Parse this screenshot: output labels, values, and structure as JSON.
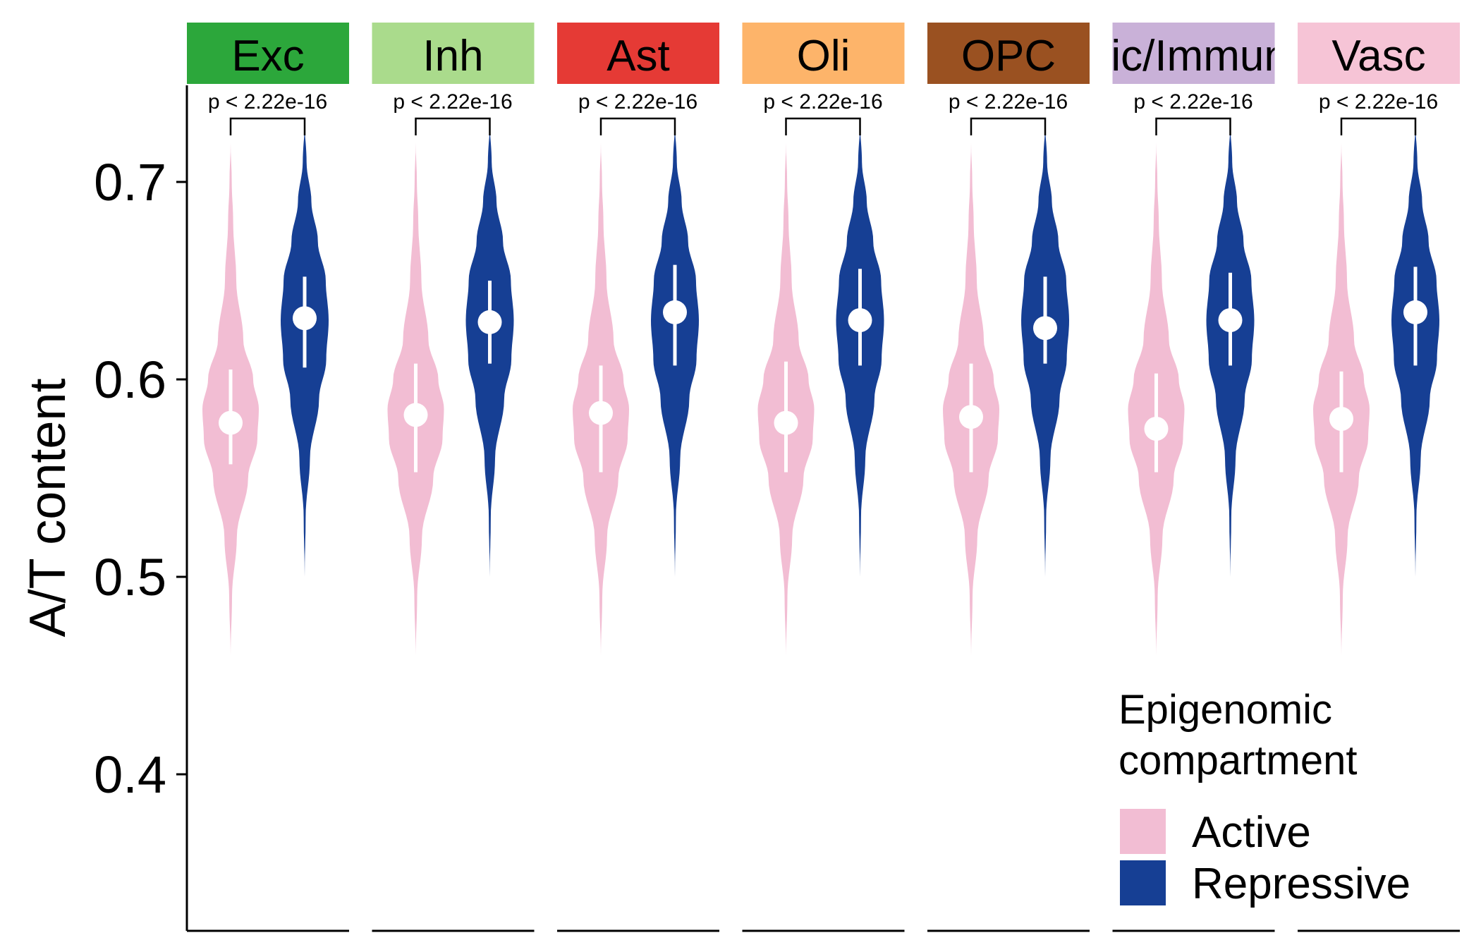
{
  "chart_data": {
    "type": "violin",
    "ylabel": "A/T content",
    "xlabel": "",
    "ylim": [
      0.32,
      0.75
    ],
    "yticks": [
      "0.4",
      "0.5",
      "0.6",
      "0.7"
    ],
    "grid": false,
    "legend": {
      "title_line1": "Epigenomic",
      "title_line2": "compartment",
      "placement": "bottom-right",
      "entries": [
        {
          "label": "Active",
          "color": "#f2bdd3"
        },
        {
          "label": "Repressive",
          "color": "#163f94"
        }
      ]
    },
    "groups": [
      "Active",
      "Repressive"
    ],
    "density_profile": {
      "Active": [
        [
          0.46,
          0
        ],
        [
          0.49,
          0.05
        ],
        [
          0.52,
          0.22
        ],
        [
          0.55,
          0.62
        ],
        [
          0.57,
          0.95
        ],
        [
          0.585,
          1
        ],
        [
          0.6,
          0.8
        ],
        [
          0.62,
          0.45
        ],
        [
          0.65,
          0.2
        ],
        [
          0.68,
          0.09
        ],
        [
          0.7,
          0.04
        ],
        [
          0.72,
          0
        ]
      ],
      "Repressive": [
        [
          0.5,
          0
        ],
        [
          0.53,
          0.04
        ],
        [
          0.56,
          0.22
        ],
        [
          0.59,
          0.6
        ],
        [
          0.61,
          0.9
        ],
        [
          0.63,
          1
        ],
        [
          0.65,
          0.88
        ],
        [
          0.67,
          0.55
        ],
        [
          0.69,
          0.28
        ],
        [
          0.71,
          0.08
        ],
        [
          0.73,
          0
        ]
      ]
    },
    "panels": [
      {
        "label": "Exc",
        "color": "#2ca73b",
        "pvalue": "p < 2.22e-16",
        "Active": {
          "median": 0.578,
          "low": 0.557,
          "high": 0.605
        },
        "Repressive": {
          "median": 0.631,
          "low": 0.606,
          "high": 0.652
        }
      },
      {
        "label": "Inh",
        "color": "#aadb8c",
        "pvalue": "p < 2.22e-16",
        "Active": {
          "median": 0.582,
          "low": 0.553,
          "high": 0.608
        },
        "Repressive": {
          "median": 0.629,
          "low": 0.608,
          "high": 0.65
        }
      },
      {
        "label": "Ast",
        "color": "#e53a35",
        "pvalue": "p < 2.22e-16",
        "Active": {
          "median": 0.583,
          "low": 0.553,
          "high": 0.607
        },
        "Repressive": {
          "median": 0.634,
          "low": 0.607,
          "high": 0.658
        }
      },
      {
        "label": "Oli",
        "color": "#fdb46a",
        "pvalue": "p < 2.22e-16",
        "Active": {
          "median": 0.578,
          "low": 0.553,
          "high": 0.609
        },
        "Repressive": {
          "median": 0.63,
          "low": 0.607,
          "high": 0.656
        }
      },
      {
        "label": "OPC",
        "color": "#9a5121",
        "pvalue": "p < 2.22e-16",
        "Active": {
          "median": 0.581,
          "low": 0.553,
          "high": 0.608
        },
        "Repressive": {
          "median": 0.626,
          "low": 0.608,
          "high": 0.652
        }
      },
      {
        "label": "Mic/Immune",
        "color": "#c9b1d8",
        "pvalue": "p < 2.22e-16",
        "Active": {
          "median": 0.575,
          "low": 0.553,
          "high": 0.603
        },
        "Repressive": {
          "median": 0.63,
          "low": 0.607,
          "high": 0.654
        }
      },
      {
        "label": "Vasc",
        "color": "#f6c4d6",
        "pvalue": "p < 2.22e-16",
        "Active": {
          "median": 0.58,
          "low": 0.553,
          "high": 0.604
        },
        "Repressive": {
          "median": 0.634,
          "low": 0.607,
          "high": 0.657
        }
      }
    ]
  }
}
